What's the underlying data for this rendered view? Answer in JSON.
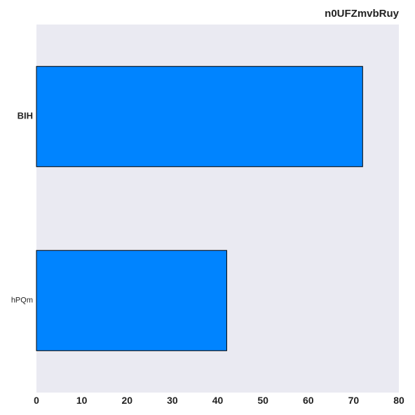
{
  "chart_data": {
    "type": "bar",
    "orientation": "horizontal",
    "title": "n0UFZmvbRuy",
    "xlabel": "",
    "ylabel": "",
    "categories": [
      "BIH",
      "hPQm"
    ],
    "values": [
      72,
      42
    ],
    "xlim": [
      0,
      80
    ],
    "xticks": [
      0,
      10,
      20,
      30,
      40,
      50,
      60,
      70,
      80
    ],
    "grid": false,
    "legend": "none",
    "colors": {
      "bar": "#0084ff",
      "bar_edge": "#000000",
      "plot_background": "#eaeaf2"
    }
  }
}
